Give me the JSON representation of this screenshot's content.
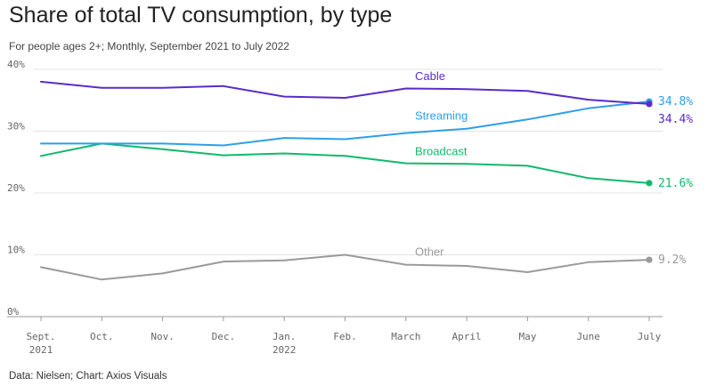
{
  "header": {
    "title": "Share of total TV consumption, by type",
    "subtitle": "For people ages 2+; Monthly, September 2021 to July 2022"
  },
  "footer": {
    "source": "Data: Nielsen; Chart: Axios Visuals"
  },
  "chart_data": {
    "type": "line",
    "title": "Share of total TV consumption, by type",
    "subtitle": "For people ages 2+; Monthly, September 2021 to July 2022",
    "xlabel": "",
    "ylabel": "",
    "ylim": [
      0,
      40
    ],
    "yticks": [
      "0%",
      "10%",
      "20%",
      "30%",
      "40%"
    ],
    "grid": true,
    "categories": [
      {
        "line1": "Sept.",
        "line2": "2021"
      },
      {
        "line1": "Oct.",
        "line2": ""
      },
      {
        "line1": "Nov.",
        "line2": ""
      },
      {
        "line1": "Dec.",
        "line2": ""
      },
      {
        "line1": "Jan.",
        "line2": "2022"
      },
      {
        "line1": "Feb.",
        "line2": ""
      },
      {
        "line1": "March",
        "line2": ""
      },
      {
        "line1": "April",
        "line2": ""
      },
      {
        "line1": "May",
        "line2": ""
      },
      {
        "line1": "June",
        "line2": ""
      },
      {
        "line1": "July",
        "line2": ""
      }
    ],
    "series": [
      {
        "name": "Cable",
        "color": "#5a2cc9",
        "values": [
          38.0,
          37.0,
          37.0,
          37.3,
          35.6,
          35.4,
          36.9,
          36.8,
          36.5,
          35.1,
          34.4
        ],
        "end_label": "34.4%"
      },
      {
        "name": "Streaming",
        "color": "#2e9fe8",
        "values": [
          28.0,
          28.0,
          28.0,
          27.7,
          28.9,
          28.7,
          29.7,
          30.4,
          31.9,
          33.7,
          34.8
        ],
        "end_label": "34.8%"
      },
      {
        "name": "Broadcast",
        "color": "#10b96a",
        "values": [
          26.0,
          28.0,
          27.1,
          26.1,
          26.4,
          26.0,
          24.8,
          24.7,
          24.4,
          22.4,
          21.6
        ],
        "end_label": "21.6%"
      },
      {
        "name": "Other",
        "color": "#9a9a9a",
        "values": [
          8.0,
          6.0,
          7.0,
          8.9,
          9.1,
          10.0,
          8.4,
          8.2,
          7.2,
          8.8,
          9.2
        ],
        "end_label": "9.2%"
      }
    ]
  }
}
